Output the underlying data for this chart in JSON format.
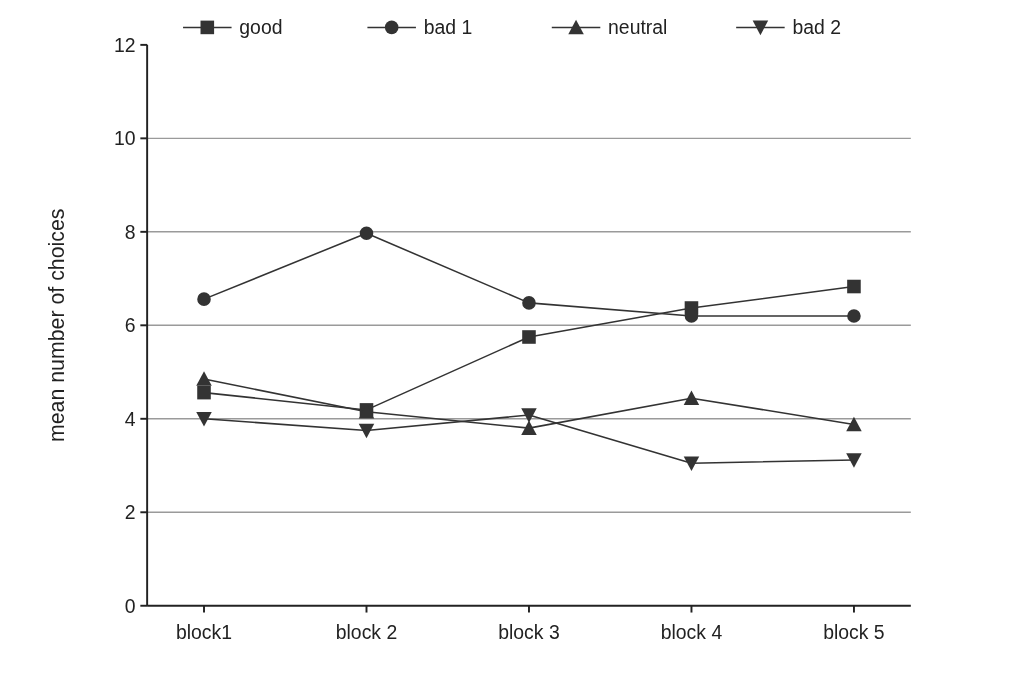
{
  "chart_data": {
    "type": "line",
    "ylabel": "mean number of choices",
    "categories": [
      "block1",
      "block 2",
      "block 3",
      "block 4",
      "block 5"
    ],
    "series": [
      {
        "name": "good",
        "color": "#333333",
        "marker": "square",
        "values": [
          4.56,
          4.19,
          5.75,
          6.37,
          6.83
        ]
      },
      {
        "name": "bad 1",
        "color": "#333333",
        "marker": "circle",
        "values": [
          6.56,
          7.97,
          6.48,
          6.2,
          6.2
        ]
      },
      {
        "name": "neutral",
        "color": "#333333",
        "marker": "triangle",
        "values": [
          4.85,
          4.15,
          3.8,
          4.44,
          3.88
        ]
      },
      {
        "name": "bad 2",
        "color": "#333333",
        "marker": "triangle-down",
        "values": [
          4.0,
          3.75,
          4.08,
          3.05,
          3.12
        ]
      }
    ],
    "ylim": [
      0,
      12
    ],
    "yticks": [
      0,
      2,
      4,
      6,
      8,
      10,
      12
    ],
    "grid": "y",
    "legend": "top"
  }
}
